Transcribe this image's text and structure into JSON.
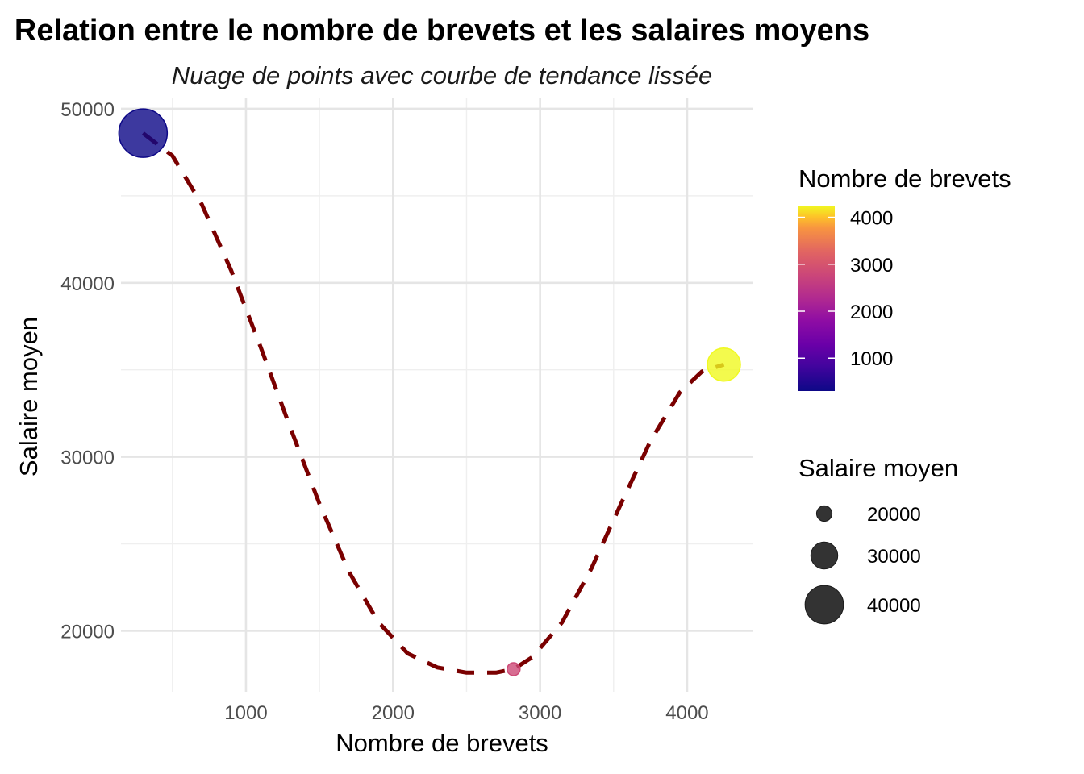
{
  "chart_data": {
    "type": "scatter",
    "title": "Relation entre le nombre de brevets et les salaires moyens",
    "subtitle": "Nuage de points avec courbe de tendance lissée",
    "xlabel": "Nombre de brevets",
    "ylabel": "Salaire moyen",
    "xlim": [
      150,
      4450
    ],
    "ylim": [
      16500,
      50600
    ],
    "x_ticks": [
      1000,
      2000,
      3000,
      4000
    ],
    "y_ticks": [
      20000,
      30000,
      40000,
      50000
    ],
    "grid": true,
    "points": [
      {
        "x": 300,
        "y": 48600
      },
      {
        "x": 2820,
        "y": 17800
      },
      {
        "x": 4250,
        "y": 35300
      }
    ],
    "trend": {
      "style": "dashed",
      "color": "#7a0000",
      "x": [
        300,
        500,
        700,
        900,
        1100,
        1300,
        1500,
        1700,
        1900,
        2100,
        2300,
        2500,
        2700,
        2820,
        2950,
        3150,
        3350,
        3550,
        3750,
        3950,
        4100,
        4250
      ],
      "y": [
        48600,
        47300,
        44500,
        40700,
        36300,
        31700,
        27300,
        23400,
        20500,
        18700,
        17900,
        17600,
        17600,
        17800,
        18500,
        20500,
        23600,
        27300,
        30900,
        33700,
        34900,
        35300
      ]
    },
    "color_legend": {
      "title": "Nombre de brevets",
      "palette": "plasma",
      "range": [
        300,
        4250
      ],
      "labels": [
        "4000",
        "3000",
        "2000",
        "1000"
      ],
      "values": [
        4000,
        3000,
        2000,
        1000
      ]
    },
    "size_legend": {
      "title": "Salaire moyen",
      "labels": [
        "20000",
        "30000",
        "40000"
      ],
      "values": [
        20000,
        30000,
        40000
      ],
      "range": [
        17800,
        48600
      ]
    },
    "legend_position": "right"
  }
}
